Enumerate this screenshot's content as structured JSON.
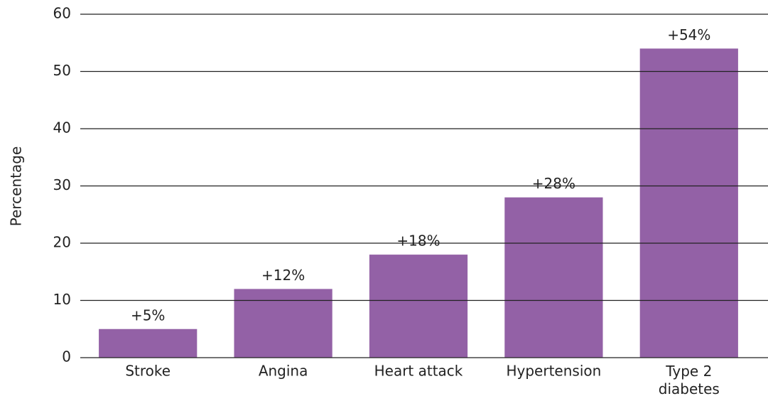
{
  "chart_data": {
    "type": "bar",
    "y_label": "Percentage",
    "categories": [
      "Stroke",
      "Angina",
      "Heart attack",
      "Hypertension",
      "Type 2\ndiabetes"
    ],
    "values": [
      5,
      12,
      18,
      28,
      54
    ],
    "value_labels": [
      "+5%",
      "+12%",
      "+18%",
      "+28%",
      "+54%"
    ],
    "color": "#9361a6",
    "ylim": [
      0,
      60
    ],
    "yticks": [
      0,
      10,
      20,
      30,
      40,
      50,
      60
    ],
    "grid": true
  }
}
